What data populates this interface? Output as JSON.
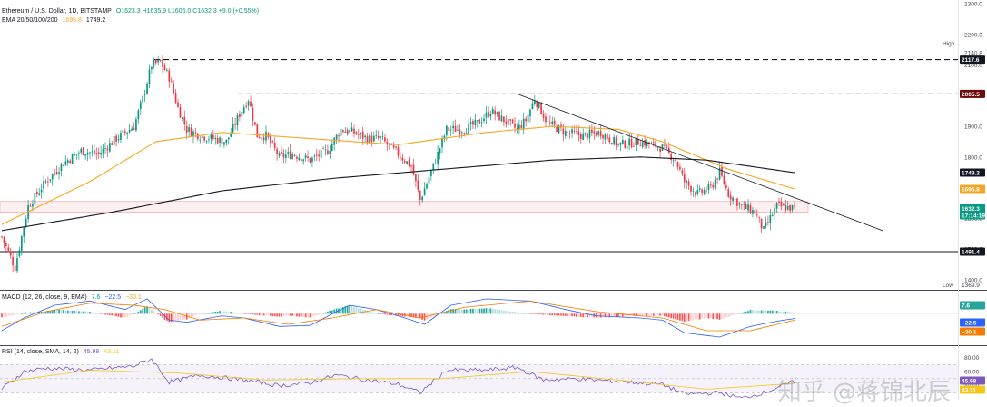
{
  "legend": {
    "symbol": "Ethereum / U.S. Dollar, 1D, BITSTAMP",
    "ohlc": "O1623.3  H1635.9  L1606.0  C1632.3  +9.0 (+0.55%)",
    "ema_label": "EMA 20/50/100/200",
    "ema_val1": "1695.8",
    "ema_val2": "1749.2"
  },
  "macd_legend": {
    "label": "MACD (12, 26, close, 9, EMA)",
    "v1": "7.6",
    "v2": "−22.5",
    "v3": "−30.1"
  },
  "rsi_legend": {
    "label": "RSI (14, close, SMA, 14, 2)",
    "v1": "45.98",
    "v2": "43.11"
  },
  "price_axis": {
    "ticks": [
      "2300.0",
      "2200.0",
      "2100.0",
      "2000.0",
      "1900.0",
      "1800.0",
      "1700.0",
      "1600.0",
      "1500.0",
      "1400.0"
    ],
    "tick_values": [
      2300,
      2200,
      2100,
      2000,
      1900,
      1800,
      1700,
      1600,
      1500,
      1400
    ],
    "high_label": "High",
    "high_value": "2140.8",
    "low_label": "Low",
    "low_value": "1369.9",
    "tags": [
      {
        "value": 2117.6,
        "text": "2117.6",
        "color": "#131722"
      },
      {
        "value": 2005.5,
        "text": "2005.5",
        "color": "#6d0a0a"
      },
      {
        "value": 1749.2,
        "text": "1749.2",
        "color": "#131722"
      },
      {
        "value": 1695.8,
        "text": "1695.8",
        "color": "#f5a623"
      },
      {
        "value": 1632.3,
        "text": "1632.3",
        "color": "#089981"
      },
      {
        "value": 1491.4,
        "text": "1491.4",
        "color": "#131722"
      }
    ],
    "countdown": "17:14:19"
  },
  "macd_axis": {
    "tags": [
      {
        "text": "7.6",
        "color": "#26a69a"
      },
      {
        "text": "−22.5",
        "color": "#2962ff"
      },
      {
        "text": "−30.1",
        "color": "#f57c00"
      }
    ]
  },
  "rsi_axis": {
    "ticks": [
      "80.00",
      "60.00",
      "40.00"
    ],
    "tags": [
      {
        "text": "45.98",
        "color": "#7e57c2"
      },
      {
        "text": "43.11",
        "color": "#f5c518"
      }
    ]
  },
  "watermark": "知乎 @蒋锦北辰",
  "chart_data": [
    {
      "type": "candlestick",
      "title": "Ethereum / U.S. Dollar, 1D, BITSTAMP",
      "ylim": [
        1370,
        2300
      ],
      "levels": [
        {
          "name": "resistance-high",
          "value": 2117.6,
          "style": "dashed"
        },
        {
          "name": "resistance-mid",
          "value": 2005.5,
          "style": "dashed"
        },
        {
          "name": "support",
          "value": 1491.4,
          "style": "solid"
        }
      ],
      "zone": [
        1620,
        1655
      ],
      "keypoints": [
        [
          0,
          1540
        ],
        [
          6,
          1440
        ],
        [
          12,
          1640
        ],
        [
          20,
          1720
        ],
        [
          28,
          1780
        ],
        [
          36,
          1820
        ],
        [
          44,
          1810
        ],
        [
          52,
          1860
        ],
        [
          60,
          1900
        ],
        [
          64,
          1990
        ],
        [
          68,
          2100
        ],
        [
          72,
          2110
        ],
        [
          76,
          2060
        ],
        [
          80,
          1960
        ],
        [
          84,
          1890
        ],
        [
          90,
          1870
        ],
        [
          96,
          1860
        ],
        [
          102,
          1850
        ],
        [
          108,
          1940
        ],
        [
          112,
          1990
        ],
        [
          116,
          1870
        ],
        [
          120,
          1870
        ],
        [
          126,
          1800
        ],
        [
          132,
          1810
        ],
        [
          140,
          1790
        ],
        [
          148,
          1820
        ],
        [
          154,
          1890
        ],
        [
          160,
          1880
        ],
        [
          166,
          1860
        ],
        [
          172,
          1860
        ],
        [
          180,
          1810
        ],
        [
          186,
          1770
        ],
        [
          190,
          1660
        ],
        [
          196,
          1770
        ],
        [
          202,
          1890
        ],
        [
          210,
          1890
        ],
        [
          216,
          1910
        ],
        [
          222,
          1950
        ],
        [
          228,
          1920
        ],
        [
          234,
          1890
        ],
        [
          238,
          1920
        ],
        [
          242,
          1990
        ],
        [
          248,
          1910
        ],
        [
          256,
          1880
        ],
        [
          264,
          1870
        ],
        [
          272,
          1880
        ],
        [
          280,
          1840
        ],
        [
          290,
          1850
        ],
        [
          300,
          1830
        ],
        [
          306,
          1790
        ],
        [
          310,
          1720
        ],
        [
          316,
          1680
        ],
        [
          322,
          1700
        ],
        [
          326,
          1750
        ],
        [
          330,
          1680
        ],
        [
          336,
          1640
        ],
        [
          342,
          1620
        ],
        [
          346,
          1560
        ],
        [
          352,
          1640
        ],
        [
          360,
          1632
        ]
      ],
      "ema50": [
        [
          0,
          1580
        ],
        [
          40,
          1720
        ],
        [
          70,
          1850
        ],
        [
          100,
          1880
        ],
        [
          140,
          1860
        ],
        [
          180,
          1840
        ],
        [
          220,
          1880
        ],
        [
          250,
          1900
        ],
        [
          280,
          1890
        ],
        [
          300,
          1850
        ],
        [
          330,
          1760
        ],
        [
          360,
          1696
        ]
      ],
      "ema200": [
        [
          0,
          1560
        ],
        [
          50,
          1620
        ],
        [
          100,
          1690
        ],
        [
          150,
          1730
        ],
        [
          200,
          1760
        ],
        [
          250,
          1790
        ],
        [
          290,
          1800
        ],
        [
          320,
          1790
        ],
        [
          360,
          1749
        ]
      ],
      "trendline": [
        [
          234,
          2005.5
        ],
        [
          400,
          1560
        ]
      ]
    },
    {
      "type": "bar",
      "title": "MACD (12, 26, close, 9, EMA)",
      "ylim": [
        -140,
        100
      ],
      "keypoints": [
        [
          0,
          -80
        ],
        [
          10,
          -20
        ],
        [
          24,
          40
        ],
        [
          40,
          60
        ],
        [
          56,
          20
        ],
        [
          66,
          70
        ],
        [
          76,
          -30
        ],
        [
          84,
          -40
        ],
        [
          100,
          -10
        ],
        [
          110,
          -20
        ],
        [
          126,
          -60
        ],
        [
          140,
          -55
        ],
        [
          152,
          10
        ],
        [
          158,
          40
        ],
        [
          170,
          20
        ],
        [
          180,
          -10
        ],
        [
          192,
          -50
        ],
        [
          204,
          40
        ],
        [
          220,
          70
        ],
        [
          240,
          60
        ],
        [
          256,
          20
        ],
        [
          270,
          -10
        ],
        [
          290,
          -20
        ],
        [
          300,
          -30
        ],
        [
          310,
          -90
        ],
        [
          326,
          -110
        ],
        [
          340,
          -60
        ],
        [
          352,
          -35
        ],
        [
          360,
          -22.5
        ]
      ],
      "signal_keypoints": [
        [
          0,
          -60
        ],
        [
          20,
          10
        ],
        [
          40,
          50
        ],
        [
          60,
          40
        ],
        [
          74,
          20
        ],
        [
          90,
          -30
        ],
        [
          110,
          -20
        ],
        [
          130,
          -50
        ],
        [
          150,
          -20
        ],
        [
          170,
          20
        ],
        [
          190,
          -20
        ],
        [
          210,
          30
        ],
        [
          240,
          60
        ],
        [
          270,
          10
        ],
        [
          300,
          -20
        ],
        [
          320,
          -80
        ],
        [
          340,
          -80
        ],
        [
          360,
          -30.1
        ]
      ]
    },
    {
      "type": "line",
      "title": "RSI (14, close, SMA, 14, 2)",
      "ylim": [
        20,
        95
      ],
      "keypoints": [
        [
          0,
          35
        ],
        [
          10,
          60
        ],
        [
          20,
          65
        ],
        [
          40,
          62
        ],
        [
          60,
          68
        ],
        [
          68,
          78
        ],
        [
          76,
          45
        ],
        [
          90,
          55
        ],
        [
          110,
          48
        ],
        [
          126,
          40
        ],
        [
          140,
          44
        ],
        [
          152,
          55
        ],
        [
          166,
          48
        ],
        [
          180,
          42
        ],
        [
          190,
          30
        ],
        [
          202,
          62
        ],
        [
          220,
          62
        ],
        [
          234,
          66
        ],
        [
          246,
          48
        ],
        [
          260,
          50
        ],
        [
          280,
          46
        ],
        [
          300,
          42
        ],
        [
          310,
          28
        ],
        [
          326,
          30
        ],
        [
          336,
          22
        ],
        [
          346,
          30
        ],
        [
          360,
          45.98
        ]
      ],
      "sma_keypoints": [
        [
          0,
          45
        ],
        [
          40,
          62
        ],
        [
          80,
          58
        ],
        [
          120,
          48
        ],
        [
          160,
          50
        ],
        [
          200,
          50
        ],
        [
          240,
          60
        ],
        [
          280,
          48
        ],
        [
          320,
          35
        ],
        [
          360,
          43.11
        ]
      ]
    }
  ]
}
